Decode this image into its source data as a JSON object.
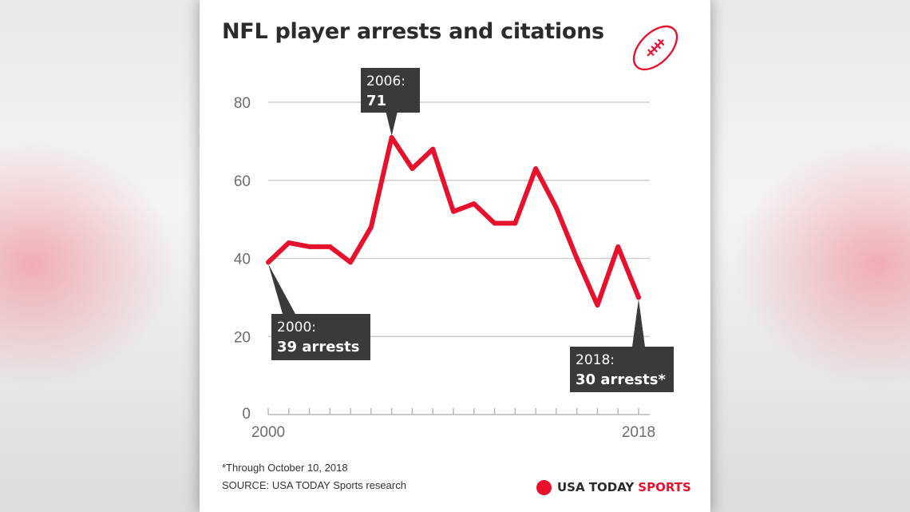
{
  "chart_data": {
    "type": "line",
    "title": "NFL player arrests and citations",
    "x": [
      2000,
      2001,
      2002,
      2003,
      2004,
      2005,
      2006,
      2007,
      2008,
      2009,
      2010,
      2011,
      2012,
      2013,
      2014,
      2015,
      2016,
      2017,
      2018
    ],
    "values": [
      39,
      44,
      43,
      43,
      39,
      48,
      71,
      63,
      68,
      52,
      54,
      49,
      49,
      63,
      53,
      40,
      28,
      43,
      30
    ],
    "xlim": [
      2000,
      2018
    ],
    "ylim": [
      0,
      80
    ],
    "y_ticks": [
      "0",
      "20",
      "40",
      "60",
      "80"
    ],
    "x_tick_labels": [
      "2000",
      "2018"
    ],
    "grid": true,
    "line_color": "#e8112d",
    "callouts": [
      {
        "year": 2006,
        "line1": "2006:",
        "line2": "71"
      },
      {
        "year": 2000,
        "line1": "2000:",
        "line2": "39 arrests"
      },
      {
        "year": 2018,
        "line1": "2018:",
        "line2": "30 arrests*"
      }
    ]
  },
  "footnote": "*Through October 10, 2018",
  "source": "SOURCE: USA TODAY Sports research",
  "brand": {
    "name": "USA TODAY",
    "accent": "SPORTS",
    "dot_color": "#e8112d"
  },
  "icon": "football-icon",
  "colors": {
    "accent": "#e8112d",
    "callout_bg": "#3a3a3a",
    "grid": "#cfcfcf",
    "text": "#2b2b2b"
  }
}
